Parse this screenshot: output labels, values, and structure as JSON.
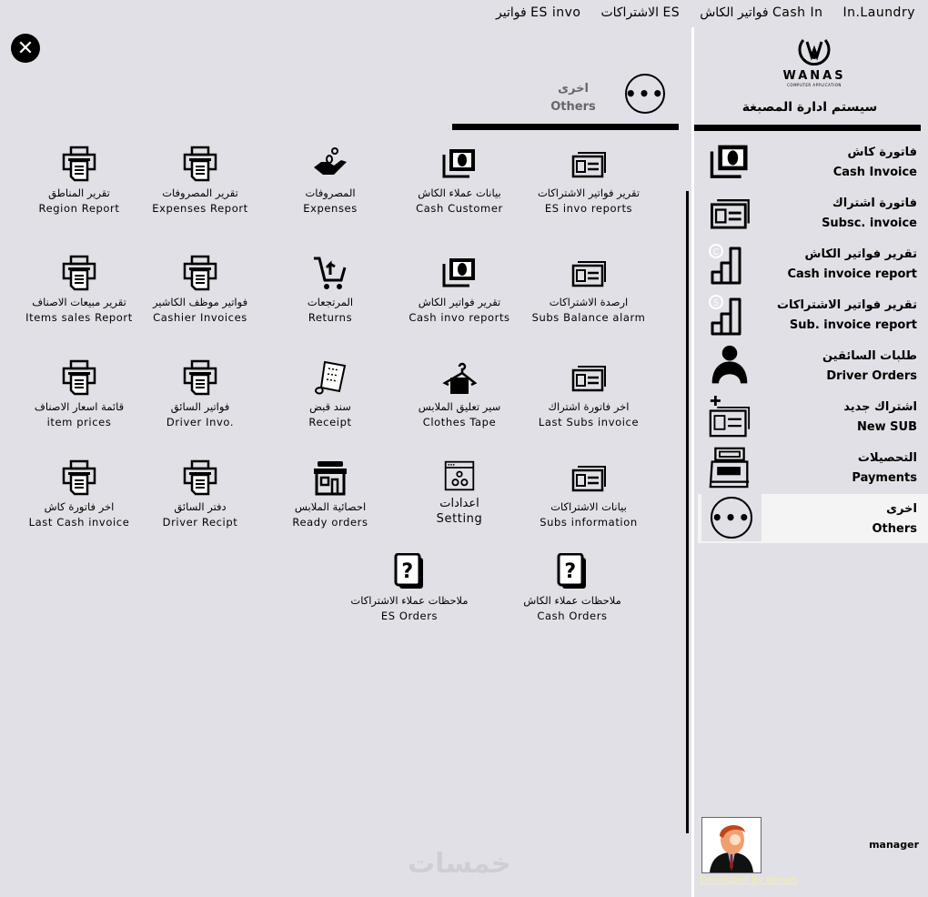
{
  "menu": [
    "In.Laundry",
    "فواتير الكاش Cash In",
    "الاشتراكات ES",
    "فواتير ES invo"
  ],
  "header": {
    "ar": "اخرى",
    "en": "Others"
  },
  "logo": {
    "name": "WANAS",
    "sub": "COMPUTER APPLICATION"
  },
  "system_title": "سيستم ادارة المصبغة",
  "tiles": [
    {
      "ar": "تقرير فواتير الاشتراكات",
      "en": "ES invo reports",
      "icon": "card-icon"
    },
    {
      "ar": "بيانات عملاء الكاش",
      "en": "Cash Customer",
      "icon": "money-icon"
    },
    {
      "ar": "المصروفات",
      "en": "Expenses",
      "icon": "hand-coin-icon"
    },
    {
      "ar": "تقرير المصروفات",
      "en": "Expenses Report",
      "icon": "printer-icon"
    },
    {
      "ar": "تقرير المناطق",
      "en": "Region Report",
      "icon": "printer-icon"
    },
    {
      "ar": "ارصدة الاشتراكات",
      "en": "Subs Balance alarm",
      "icon": "card-icon"
    },
    {
      "ar": "تقرير فواتير الكاش",
      "en": "Cash invo reports",
      "icon": "money-icon"
    },
    {
      "ar": "المرتجعات",
      "en": "Returns",
      "icon": "cart-return-icon"
    },
    {
      "ar": "فواتير موظف الكاشير",
      "en": "Cashier Invoices",
      "icon": "printer-icon"
    },
    {
      "ar": "تقرير مبيعات الاصناف",
      "en": "Items sales Report",
      "icon": "printer-icon"
    },
    {
      "ar": "اخر فاتورة اشتراك",
      "en": "Last Subs invoice",
      "icon": "card-icon"
    },
    {
      "ar": "سير تعليق الملابس",
      "en": "Clothes Tape",
      "icon": "hanger-icon"
    },
    {
      "ar": "سند قبض",
      "en": "Receipt",
      "icon": "receipt-icon"
    },
    {
      "ar": "فواتير السائق",
      "en": "Driver Invo.",
      "icon": "printer-icon"
    },
    {
      "ar": "قائمة اسعار الاصناف",
      "en": "item prices",
      "icon": "printer-icon"
    },
    {
      "ar": "بيانات  الاشتراكات",
      "en": "Subs information",
      "icon": "card-icon"
    },
    {
      "ar": "اعدادات",
      "en": "Setting",
      "icon": "settings-icon"
    },
    {
      "ar": "احصائية الملابس",
      "en": "Ready orders",
      "icon": "store-icon"
    },
    {
      "ar": "دفتر السائق",
      "en": "Driver Recipt",
      "icon": "printer-icon"
    },
    {
      "ar": "اخر فاتورة كاش",
      "en": "Last Cash invoice",
      "icon": "printer-icon"
    },
    {
      "ar": "ملاحظات عملاء الكاش",
      "en": "Cash Orders",
      "icon": "question-icon"
    },
    {
      "ar": "ملاحظات عملاء الاشتراكات",
      "en": "ES Orders",
      "icon": "question-icon"
    }
  ],
  "sidebar": [
    {
      "ar": "فاتورة كاش",
      "en": "Cash Invoice",
      "icon": "money-icon"
    },
    {
      "ar": "فاتورة اشتراك",
      "en": "Subsc. invoice",
      "icon": "card-icon"
    },
    {
      "ar": "تقرير فواتير الكاش",
      "en": "Cash invoice report",
      "icon": "chart-c-icon"
    },
    {
      "ar": "تقرير فواتير الاشتراكات",
      "en": "Sub. invoice report",
      "icon": "chart-s-icon"
    },
    {
      "ar": "طلبات السائقين",
      "en": "Driver Orders",
      "icon": "driver-icon"
    },
    {
      "ar": "اشتراك جديد",
      "en": "New SUB",
      "icon": "new-card-icon"
    },
    {
      "ar": "التحصيلات",
      "en": "Payments",
      "icon": "cash-register-icon"
    },
    {
      "ar": "اخرى",
      "en": "Others",
      "icon": "more-icon",
      "selected": true
    }
  ],
  "user": {
    "name": "manager",
    "dev": "Developed By WanaS"
  },
  "watermark": "خمسات"
}
